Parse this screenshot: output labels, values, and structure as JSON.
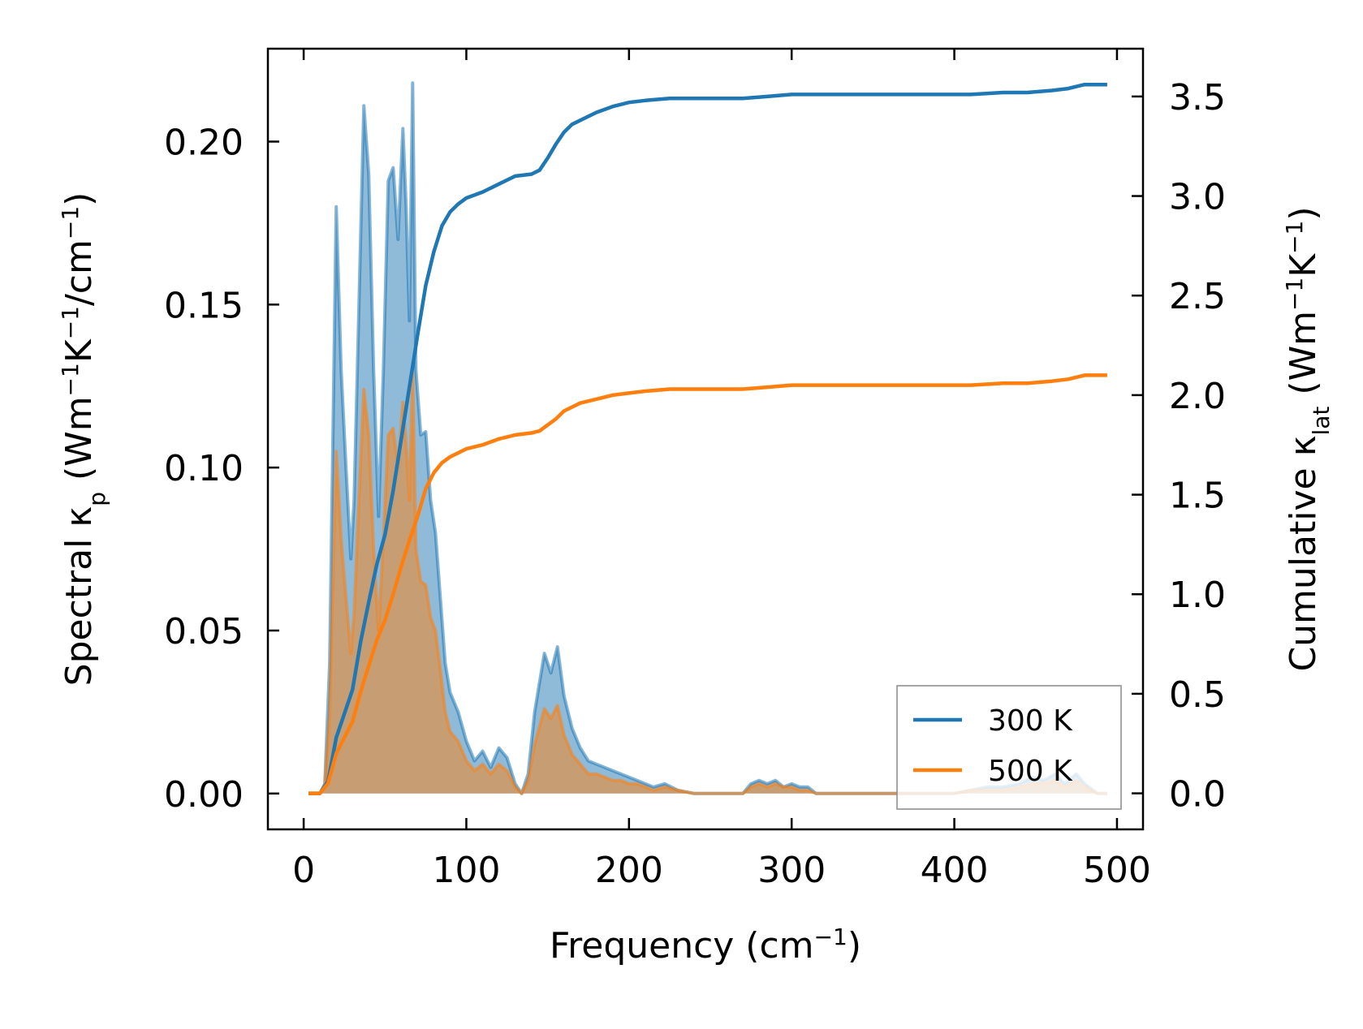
{
  "colors": {
    "series_300K": "#1f77b4",
    "series_500K": "#ff7f0e",
    "axis": "#000000",
    "legend_border": "#888888"
  },
  "chart_data": {
    "type": "area",
    "title": "",
    "xlabel": {
      "prefix": "Frequency (cm",
      "sup": "−1",
      "suffix": ")"
    },
    "ylabel_left": {
      "parts": [
        {
          "t": "Spectral κ"
        },
        {
          "t": "p",
          "sub": true
        },
        {
          "t": " (Wm"
        },
        {
          "t": "−1",
          "sup": true
        },
        {
          "t": "K"
        },
        {
          "t": "−1",
          "sup": true
        },
        {
          "t": "/cm"
        },
        {
          "t": "−1",
          "sup": true
        },
        {
          "t": ")"
        }
      ]
    },
    "ylabel_right": {
      "parts": [
        {
          "t": "Cumulative κ"
        },
        {
          "t": "lat",
          "sub": true
        },
        {
          "t": " (Wm"
        },
        {
          "t": "−1",
          "sup": true
        },
        {
          "t": "K"
        },
        {
          "t": "−1",
          "sup": true
        },
        {
          "t": ")"
        }
      ]
    },
    "xlim": [
      -22,
      516
    ],
    "ylim_left": [
      -0.011,
      0.2285
    ],
    "ylim_right": [
      -0.181,
      3.74
    ],
    "xticks": [
      0,
      100,
      200,
      300,
      400,
      500
    ],
    "xtick_labels": [
      "0",
      "100",
      "200",
      "300",
      "400",
      "500"
    ],
    "yticks_left": [
      0.0,
      0.05,
      0.1,
      0.15,
      0.2
    ],
    "ytick_labels_left": [
      "0.00",
      "0.05",
      "0.10",
      "0.15",
      "0.20"
    ],
    "yticks_right": [
      0.0,
      0.5,
      1.0,
      1.5,
      2.0,
      2.5,
      3.0,
      3.5
    ],
    "ytick_labels_right": [
      "0.0",
      "0.5",
      "1.0",
      "1.5",
      "2.0",
      "2.5",
      "3.0",
      "3.5"
    ],
    "grid": false,
    "legend": {
      "position": "lower-right",
      "entries": [
        "300 K",
        "500 K"
      ]
    },
    "spectral_300K": [
      [
        3,
        0.0
      ],
      [
        10,
        0.0
      ],
      [
        13,
        0.003
      ],
      [
        16,
        0.04
      ],
      [
        20,
        0.18
      ],
      [
        23,
        0.13
      ],
      [
        26,
        0.1
      ],
      [
        29,
        0.072
      ],
      [
        31,
        0.09
      ],
      [
        34,
        0.15
      ],
      [
        37,
        0.211
      ],
      [
        40,
        0.19
      ],
      [
        43,
        0.13
      ],
      [
        46,
        0.085
      ],
      [
        49,
        0.13
      ],
      [
        52,
        0.188
      ],
      [
        55,
        0.192
      ],
      [
        58,
        0.17
      ],
      [
        61,
        0.204
      ],
      [
        63,
        0.18
      ],
      [
        65,
        0.145
      ],
      [
        67,
        0.218
      ],
      [
        69,
        0.13
      ],
      [
        72,
        0.11
      ],
      [
        75,
        0.111
      ],
      [
        78,
        0.09
      ],
      [
        81,
        0.08
      ],
      [
        84,
        0.06
      ],
      [
        87,
        0.04
      ],
      [
        90,
        0.031
      ],
      [
        95,
        0.025
      ],
      [
        100,
        0.016
      ],
      [
        105,
        0.01
      ],
      [
        110,
        0.013
      ],
      [
        115,
        0.008
      ],
      [
        120,
        0.014
      ],
      [
        125,
        0.011
      ],
      [
        130,
        0.003
      ],
      [
        134,
        0.0
      ],
      [
        138,
        0.006
      ],
      [
        142,
        0.025
      ],
      [
        148,
        0.043
      ],
      [
        152,
        0.037
      ],
      [
        156,
        0.045
      ],
      [
        160,
        0.03
      ],
      [
        165,
        0.02
      ],
      [
        170,
        0.014
      ],
      [
        175,
        0.01
      ],
      [
        180,
        0.009
      ],
      [
        185,
        0.008
      ],
      [
        190,
        0.007
      ],
      [
        195,
        0.006
      ],
      [
        200,
        0.005
      ],
      [
        205,
        0.004
      ],
      [
        210,
        0.003
      ],
      [
        215,
        0.002
      ],
      [
        222,
        0.003
      ],
      [
        230,
        0.001
      ],
      [
        240,
        0.0
      ],
      [
        270,
        0.0
      ],
      [
        275,
        0.003
      ],
      [
        280,
        0.004
      ],
      [
        285,
        0.003
      ],
      [
        290,
        0.004
      ],
      [
        295,
        0.002
      ],
      [
        300,
        0.003
      ],
      [
        305,
        0.002
      ],
      [
        310,
        0.002
      ],
      [
        315,
        0.0
      ],
      [
        400,
        0.0
      ],
      [
        410,
        0.001
      ],
      [
        420,
        0.002
      ],
      [
        430,
        0.002
      ],
      [
        440,
        0.003
      ],
      [
        448,
        0.005
      ],
      [
        455,
        0.004
      ],
      [
        462,
        0.006
      ],
      [
        468,
        0.003
      ],
      [
        475,
        0.006
      ],
      [
        480,
        0.003
      ],
      [
        488,
        0.0
      ],
      [
        494,
        0.0
      ]
    ],
    "spectral_500K": [
      [
        3,
        0.0
      ],
      [
        10,
        0.0
      ],
      [
        13,
        0.002
      ],
      [
        16,
        0.025
      ],
      [
        20,
        0.105
      ],
      [
        23,
        0.078
      ],
      [
        26,
        0.06
      ],
      [
        29,
        0.043
      ],
      [
        31,
        0.055
      ],
      [
        34,
        0.09
      ],
      [
        37,
        0.124
      ],
      [
        40,
        0.11
      ],
      [
        43,
        0.075
      ],
      [
        46,
        0.05
      ],
      [
        49,
        0.078
      ],
      [
        52,
        0.11
      ],
      [
        55,
        0.112
      ],
      [
        58,
        0.1
      ],
      [
        61,
        0.12
      ],
      [
        63,
        0.107
      ],
      [
        65,
        0.09
      ],
      [
        67,
        0.129
      ],
      [
        69,
        0.075
      ],
      [
        72,
        0.065
      ],
      [
        75,
        0.064
      ],
      [
        78,
        0.054
      ],
      [
        81,
        0.05
      ],
      [
        84,
        0.038
      ],
      [
        87,
        0.025
      ],
      [
        90,
        0.019
      ],
      [
        95,
        0.016
      ],
      [
        100,
        0.01
      ],
      [
        105,
        0.007
      ],
      [
        110,
        0.009
      ],
      [
        115,
        0.006
      ],
      [
        120,
        0.009
      ],
      [
        125,
        0.007
      ],
      [
        130,
        0.002
      ],
      [
        134,
        0.0
      ],
      [
        138,
        0.004
      ],
      [
        142,
        0.015
      ],
      [
        148,
        0.026
      ],
      [
        152,
        0.023
      ],
      [
        156,
        0.027
      ],
      [
        160,
        0.018
      ],
      [
        165,
        0.012
      ],
      [
        170,
        0.009
      ],
      [
        175,
        0.006
      ],
      [
        180,
        0.006
      ],
      [
        185,
        0.005
      ],
      [
        190,
        0.004
      ],
      [
        195,
        0.004
      ],
      [
        200,
        0.003
      ],
      [
        205,
        0.003
      ],
      [
        210,
        0.002
      ],
      [
        215,
        0.001
      ],
      [
        222,
        0.002
      ],
      [
        230,
        0.001
      ],
      [
        240,
        0.0
      ],
      [
        270,
        0.0
      ],
      [
        275,
        0.002
      ],
      [
        280,
        0.003
      ],
      [
        285,
        0.002
      ],
      [
        290,
        0.003
      ],
      [
        295,
        0.002
      ],
      [
        300,
        0.002
      ],
      [
        305,
        0.001
      ],
      [
        310,
        0.001
      ],
      [
        315,
        0.0
      ],
      [
        400,
        0.0
      ],
      [
        410,
        0.001
      ],
      [
        420,
        0.001
      ],
      [
        430,
        0.001
      ],
      [
        440,
        0.002
      ],
      [
        448,
        0.003
      ],
      [
        455,
        0.003
      ],
      [
        462,
        0.004
      ],
      [
        468,
        0.002
      ],
      [
        475,
        0.004
      ],
      [
        480,
        0.002
      ],
      [
        488,
        0.0
      ],
      [
        494,
        0.0
      ]
    ],
    "cumulative_300K": [
      [
        3,
        0.0
      ],
      [
        10,
        0.0
      ],
      [
        15,
        0.06
      ],
      [
        20,
        0.28
      ],
      [
        25,
        0.4
      ],
      [
        30,
        0.52
      ],
      [
        35,
        0.76
      ],
      [
        40,
        0.96
      ],
      [
        45,
        1.15
      ],
      [
        50,
        1.3
      ],
      [
        55,
        1.52
      ],
      [
        60,
        1.78
      ],
      [
        65,
        2.04
      ],
      [
        70,
        2.3
      ],
      [
        75,
        2.55
      ],
      [
        80,
        2.72
      ],
      [
        85,
        2.85
      ],
      [
        90,
        2.92
      ],
      [
        95,
        2.96
      ],
      [
        100,
        2.99
      ],
      [
        110,
        3.02
      ],
      [
        120,
        3.06
      ],
      [
        130,
        3.1
      ],
      [
        140,
        3.11
      ],
      [
        145,
        3.13
      ],
      [
        150,
        3.19
      ],
      [
        155,
        3.26
      ],
      [
        160,
        3.32
      ],
      [
        165,
        3.36
      ],
      [
        170,
        3.38
      ],
      [
        180,
        3.42
      ],
      [
        190,
        3.45
      ],
      [
        200,
        3.47
      ],
      [
        210,
        3.48
      ],
      [
        225,
        3.49
      ],
      [
        250,
        3.49
      ],
      [
        270,
        3.49
      ],
      [
        285,
        3.5
      ],
      [
        300,
        3.51
      ],
      [
        315,
        3.51
      ],
      [
        400,
        3.51
      ],
      [
        410,
        3.51
      ],
      [
        430,
        3.52
      ],
      [
        445,
        3.52
      ],
      [
        460,
        3.53
      ],
      [
        470,
        3.54
      ],
      [
        480,
        3.56
      ],
      [
        494,
        3.56
      ]
    ],
    "cumulative_500K": [
      [
        3,
        0.0
      ],
      [
        10,
        0.0
      ],
      [
        15,
        0.05
      ],
      [
        20,
        0.2
      ],
      [
        25,
        0.28
      ],
      [
        30,
        0.36
      ],
      [
        35,
        0.51
      ],
      [
        40,
        0.64
      ],
      [
        45,
        0.77
      ],
      [
        50,
        0.87
      ],
      [
        55,
        1.0
      ],
      [
        60,
        1.14
      ],
      [
        65,
        1.27
      ],
      [
        70,
        1.39
      ],
      [
        75,
        1.53
      ],
      [
        80,
        1.61
      ],
      [
        85,
        1.66
      ],
      [
        90,
        1.69
      ],
      [
        95,
        1.71
      ],
      [
        100,
        1.73
      ],
      [
        110,
        1.75
      ],
      [
        120,
        1.78
      ],
      [
        130,
        1.8
      ],
      [
        140,
        1.81
      ],
      [
        145,
        1.82
      ],
      [
        150,
        1.85
      ],
      [
        155,
        1.88
      ],
      [
        160,
        1.92
      ],
      [
        165,
        1.94
      ],
      [
        170,
        1.96
      ],
      [
        180,
        1.98
      ],
      [
        190,
        2.0
      ],
      [
        200,
        2.01
      ],
      [
        210,
        2.02
      ],
      [
        225,
        2.03
      ],
      [
        250,
        2.03
      ],
      [
        270,
        2.03
      ],
      [
        285,
        2.04
      ],
      [
        300,
        2.05
      ],
      [
        315,
        2.05
      ],
      [
        400,
        2.05
      ],
      [
        410,
        2.05
      ],
      [
        430,
        2.06
      ],
      [
        445,
        2.06
      ],
      [
        460,
        2.07
      ],
      [
        470,
        2.08
      ],
      [
        480,
        2.1
      ],
      [
        494,
        2.1
      ]
    ]
  }
}
